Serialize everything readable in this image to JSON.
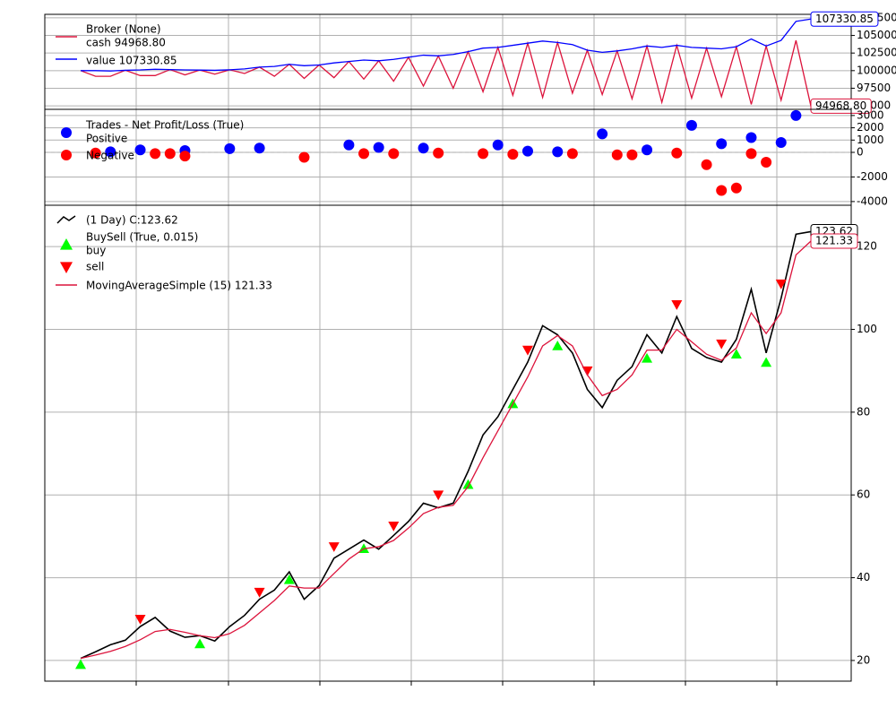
{
  "chart_data": [
    {
      "type": "line",
      "title": "Broker (None)",
      "ylim": [
        94500,
        108000
      ],
      "yticks": [
        95000,
        97500,
        100000,
        102500,
        105000,
        107500
      ],
      "grid": true,
      "series": [
        {
          "name": "cash 94968.80",
          "end_label": "94968.80",
          "color": "#dc143c",
          "values": [
            100000,
            99200,
            99200,
            100050,
            99300,
            99300,
            100150,
            99400,
            100080,
            99500,
            100120,
            99600,
            100500,
            99200,
            100900,
            98900,
            100800,
            99000,
            101300,
            98800,
            101400,
            98500,
            101900,
            97800,
            102100,
            97500,
            102700,
            97000,
            103300,
            96500,
            103900,
            96200,
            104000,
            96800,
            102900,
            96600,
            102800,
            96000,
            103500,
            95500,
            103600,
            96100,
            103200,
            96300,
            103400,
            95200,
            103500,
            95800,
            104300,
            94968.8
          ]
        },
        {
          "name": "value 107330.85",
          "end_label": "107330.85",
          "color": "#0000ff",
          "values": [
            100000,
            100000,
            99950,
            100050,
            100100,
            100200,
            100150,
            100100,
            100080,
            100050,
            100120,
            100250,
            100500,
            100600,
            100900,
            100700,
            100800,
            101100,
            101300,
            101500,
            101400,
            101600,
            101900,
            102200,
            102100,
            102300,
            102700,
            103200,
            103300,
            103600,
            103900,
            104200,
            104000,
            103700,
            102900,
            102600,
            102800,
            103100,
            103500,
            103300,
            103600,
            103300,
            103200,
            103100,
            103400,
            104500,
            103500,
            104300,
            107000,
            107330.85
          ]
        }
      ]
    },
    {
      "type": "scatter",
      "title": "Trades - Net Profit/Loss (True)",
      "xlim": [
        0,
        49
      ],
      "ylim": [
        -4300,
        3500
      ],
      "yticks": [
        -4000,
        -2000,
        0,
        1000,
        2000,
        3000
      ],
      "grid": true,
      "series": [
        {
          "name": "Positive",
          "color": "#0000ff",
          "x": [
            2,
            4,
            7,
            10,
            12,
            18,
            20,
            23,
            28,
            30,
            32,
            35,
            38,
            41,
            43,
            45,
            47,
            48
          ],
          "values": [
            50,
            200,
            150,
            300,
            350,
            600,
            400,
            350,
            600,
            100,
            50,
            1500,
            200,
            2200,
            700,
            1200,
            800,
            3000
          ]
        },
        {
          "name": "Negative",
          "color": "#ff0000",
          "x": [
            1,
            5,
            6,
            7,
            15,
            19,
            21,
            24,
            27,
            29,
            33,
            36,
            37,
            40,
            42,
            43,
            44,
            45,
            46
          ],
          "values": [
            -50,
            -100,
            -100,
            -300,
            -400,
            -100,
            -100,
            -50,
            -100,
            -150,
            -100,
            -200,
            -200,
            -50,
            -1000,
            -3100,
            -2900,
            -100,
            -800
          ]
        }
      ]
    },
    {
      "type": "line",
      "subtitle": "BuySell (True, 0.015)",
      "ylim": [
        15,
        130
      ],
      "yticks": [
        20,
        40,
        60,
        80,
        100,
        120
      ],
      "grid": true,
      "series": [
        {
          "name": " (1 Day) C:123.62",
          "end_label": "123.62",
          "color": "#000000",
          "style": "line",
          "values": [
            20.5,
            22.1,
            23.8,
            24.9,
            28.2,
            30.4,
            27.1,
            25.6,
            26.0,
            24.7,
            28.2,
            30.9,
            34.8,
            37.0,
            41.4,
            34.8,
            38.1,
            44.7,
            46.9,
            49.1,
            46.9,
            50.2,
            53.6,
            58.0,
            56.9,
            58.0,
            65.7,
            74.5,
            78.9,
            85.5,
            92.1,
            100.9,
            98.7,
            94.3,
            85.5,
            81.1,
            87.7,
            91.0,
            98.7,
            94.3,
            103.1,
            95.4,
            93.2,
            92.1,
            97.6,
            109.7,
            94.3,
            107.5,
            123.0,
            123.62
          ]
        },
        {
          "name": "buy",
          "color": "#00ff00",
          "style": "triangle-up",
          "values": [
            19.0,
            null,
            null,
            null,
            null,
            null,
            null,
            null,
            24.0,
            null,
            null,
            null,
            null,
            null,
            39.5,
            null,
            null,
            null,
            null,
            47.0,
            null,
            null,
            null,
            null,
            null,
            null,
            62.5,
            null,
            null,
            82.0,
            null,
            null,
            96.0,
            null,
            null,
            null,
            null,
            null,
            93.0,
            null,
            null,
            null,
            null,
            null,
            94.0,
            null,
            92.0,
            null,
            null,
            null
          ]
        },
        {
          "name": "sell",
          "color": "#ff0000",
          "style": "triangle-down",
          "values": [
            null,
            null,
            null,
            null,
            30.0,
            null,
            null,
            null,
            null,
            null,
            null,
            null,
            36.5,
            null,
            null,
            null,
            null,
            47.5,
            null,
            null,
            null,
            52.5,
            null,
            null,
            60.0,
            null,
            null,
            null,
            null,
            null,
            95.0,
            null,
            null,
            null,
            90.0,
            null,
            null,
            null,
            null,
            null,
            106.0,
            null,
            null,
            96.5,
            null,
            null,
            null,
            111.0,
            null,
            null
          ]
        },
        {
          "name": "MovingAverageSimple (15) 121.33",
          "end_label": "121.33",
          "color": "#dc143c",
          "style": "line",
          "values": [
            20.5,
            21.3,
            22.2,
            23.4,
            25.0,
            27.0,
            27.5,
            26.8,
            26.0,
            25.5,
            26.5,
            28.5,
            31.5,
            34.5,
            38.0,
            37.5,
            37.5,
            41.0,
            44.5,
            47.0,
            47.5,
            49.0,
            52.0,
            55.5,
            57.0,
            57.5,
            62.0,
            69.0,
            75.5,
            82.0,
            88.5,
            96.0,
            98.5,
            96.0,
            89.0,
            84.0,
            85.5,
            89.0,
            95.0,
            95.0,
            100.0,
            97.0,
            94.0,
            92.5,
            95.5,
            104.0,
            99.0,
            104.0,
            118.0,
            121.33
          ]
        }
      ]
    }
  ]
}
